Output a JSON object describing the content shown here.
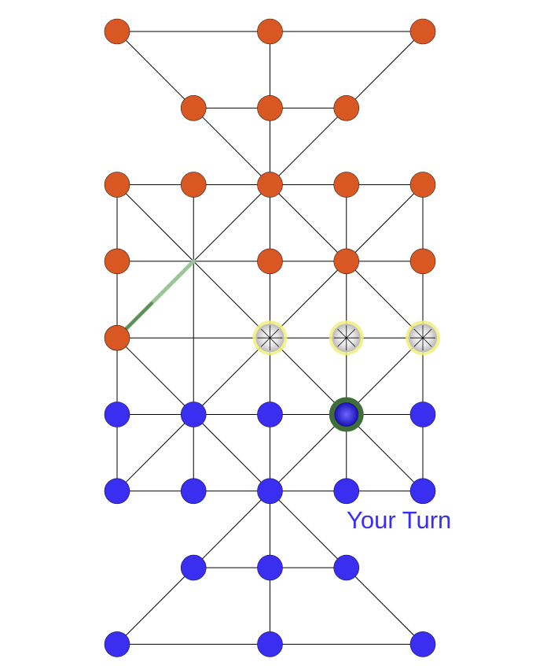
{
  "status": {
    "turn_text": "Your Turn"
  },
  "colors": {
    "background": "#ffffff",
    "line": "#000000",
    "orange_piece": "#d95723",
    "blue_piece": "#3a2ef0",
    "selected_ring": "#3f6e3a",
    "move_hint_ring": "#f0ef7a",
    "move_hint_fill": "#b9b9b9",
    "last_move_trail": "#9cc49a",
    "turn_text": "#3a2ef0"
  },
  "board": {
    "columns": [
      "c0",
      "c1",
      "c2",
      "c3",
      "c4"
    ],
    "rows": [
      "r0",
      "r1",
      "r2",
      "r3",
      "r4",
      "r5",
      "r6",
      "r7",
      "r8"
    ],
    "nodes": [
      {
        "id": "n0-0",
        "col": 0,
        "row": 0,
        "piece": "orange"
      },
      {
        "id": "n2-0",
        "col": 2,
        "row": 0,
        "piece": "orange"
      },
      {
        "id": "n4-0",
        "col": 4,
        "row": 0,
        "piece": "orange"
      },
      {
        "id": "n1-1",
        "col": 1,
        "row": 1,
        "piece": "orange"
      },
      {
        "id": "n2-1",
        "col": 2,
        "row": 1,
        "piece": "orange"
      },
      {
        "id": "n3-1",
        "col": 3,
        "row": 1,
        "piece": "orange"
      },
      {
        "id": "n0-2",
        "col": 0,
        "row": 2,
        "piece": "orange"
      },
      {
        "id": "n1-2",
        "col": 1,
        "row": 2,
        "piece": "orange"
      },
      {
        "id": "n2-2",
        "col": 2,
        "row": 2,
        "piece": "orange"
      },
      {
        "id": "n3-2",
        "col": 3,
        "row": 2,
        "piece": "orange"
      },
      {
        "id": "n4-2",
        "col": 4,
        "row": 2,
        "piece": "orange"
      },
      {
        "id": "n0-3",
        "col": 0,
        "row": 3,
        "piece": "orange"
      },
      {
        "id": "n1-3",
        "col": 1,
        "row": 3,
        "piece": "empty"
      },
      {
        "id": "n2-3",
        "col": 2,
        "row": 3,
        "piece": "orange"
      },
      {
        "id": "n3-3",
        "col": 3,
        "row": 3,
        "piece": "orange"
      },
      {
        "id": "n4-3",
        "col": 4,
        "row": 3,
        "piece": "orange"
      },
      {
        "id": "n0-4",
        "col": 0,
        "row": 4,
        "piece": "orange"
      },
      {
        "id": "n1-4",
        "col": 1,
        "row": 4,
        "piece": "empty"
      },
      {
        "id": "n2-4",
        "col": 2,
        "row": 4,
        "piece": "hint"
      },
      {
        "id": "n3-4",
        "col": 3,
        "row": 4,
        "piece": "hint"
      },
      {
        "id": "n4-4",
        "col": 4,
        "row": 4,
        "piece": "hint"
      },
      {
        "id": "n0-5",
        "col": 0,
        "row": 5,
        "piece": "blue"
      },
      {
        "id": "n1-5",
        "col": 1,
        "row": 5,
        "piece": "blue"
      },
      {
        "id": "n2-5",
        "col": 2,
        "row": 5,
        "piece": "blue"
      },
      {
        "id": "n3-5",
        "col": 3,
        "row": 5,
        "piece": "blue-selected"
      },
      {
        "id": "n4-5",
        "col": 4,
        "row": 5,
        "piece": "blue"
      },
      {
        "id": "n0-6",
        "col": 0,
        "row": 6,
        "piece": "blue"
      },
      {
        "id": "n1-6",
        "col": 1,
        "row": 6,
        "piece": "blue"
      },
      {
        "id": "n2-6",
        "col": 2,
        "row": 6,
        "piece": "blue"
      },
      {
        "id": "n3-6",
        "col": 3,
        "row": 6,
        "piece": "blue"
      },
      {
        "id": "n4-6",
        "col": 4,
        "row": 6,
        "piece": "blue"
      },
      {
        "id": "n1-7",
        "col": 1,
        "row": 7,
        "piece": "blue"
      },
      {
        "id": "n2-7",
        "col": 2,
        "row": 7,
        "piece": "blue"
      },
      {
        "id": "n3-7",
        "col": 3,
        "row": 7,
        "piece": "blue"
      },
      {
        "id": "n0-8",
        "col": 0,
        "row": 8,
        "piece": "blue"
      },
      {
        "id": "n2-8",
        "col": 2,
        "row": 8,
        "piece": "blue"
      },
      {
        "id": "n4-8",
        "col": 4,
        "row": 8,
        "piece": "blue"
      }
    ],
    "edges": [
      [
        "n0-0",
        "n2-0"
      ],
      [
        "n2-0",
        "n4-0"
      ],
      [
        "n0-0",
        "n1-1"
      ],
      [
        "n4-0",
        "n3-1"
      ],
      [
        "n2-0",
        "n2-1"
      ],
      [
        "n1-1",
        "n2-1"
      ],
      [
        "n2-1",
        "n3-1"
      ],
      [
        "n2-1",
        "n2-2"
      ],
      [
        "n1-1",
        "n2-2"
      ],
      [
        "n3-1",
        "n2-2"
      ],
      [
        "n0-2",
        "n1-2"
      ],
      [
        "n1-2",
        "n2-2"
      ],
      [
        "n2-2",
        "n3-2"
      ],
      [
        "n3-2",
        "n4-2"
      ],
      [
        "n0-3",
        "n1-3"
      ],
      [
        "n1-3",
        "n2-3"
      ],
      [
        "n2-3",
        "n3-3"
      ],
      [
        "n3-3",
        "n4-3"
      ],
      [
        "n0-4",
        "n1-4"
      ],
      [
        "n1-4",
        "n2-4"
      ],
      [
        "n2-4",
        "n3-4"
      ],
      [
        "n3-4",
        "n4-4"
      ],
      [
        "n0-5",
        "n1-5"
      ],
      [
        "n1-5",
        "n2-5"
      ],
      [
        "n2-5",
        "n3-5"
      ],
      [
        "n3-5",
        "n4-5"
      ],
      [
        "n0-6",
        "n1-6"
      ],
      [
        "n1-6",
        "n2-6"
      ],
      [
        "n2-6",
        "n3-6"
      ],
      [
        "n3-6",
        "n4-6"
      ],
      [
        "n0-2",
        "n0-3"
      ],
      [
        "n0-3",
        "n0-4"
      ],
      [
        "n0-4",
        "n0-5"
      ],
      [
        "n0-5",
        "n0-6"
      ],
      [
        "n1-2",
        "n1-3"
      ],
      [
        "n1-3",
        "n1-4"
      ],
      [
        "n1-4",
        "n1-5"
      ],
      [
        "n1-5",
        "n1-6"
      ],
      [
        "n2-2",
        "n2-3"
      ],
      [
        "n2-3",
        "n2-4"
      ],
      [
        "n2-4",
        "n2-5"
      ],
      [
        "n2-5",
        "n2-6"
      ],
      [
        "n3-2",
        "n3-3"
      ],
      [
        "n3-3",
        "n3-4"
      ],
      [
        "n3-4",
        "n3-5"
      ],
      [
        "n3-5",
        "n3-6"
      ],
      [
        "n4-2",
        "n4-3"
      ],
      [
        "n4-3",
        "n4-4"
      ],
      [
        "n4-4",
        "n4-5"
      ],
      [
        "n4-5",
        "n4-6"
      ],
      [
        "n0-2",
        "n1-3"
      ],
      [
        "n1-3",
        "n2-4"
      ],
      [
        "n2-4",
        "n3-5"
      ],
      [
        "n3-5",
        "n4-6"
      ],
      [
        "n2-2",
        "n3-3"
      ],
      [
        "n3-3",
        "n4-4"
      ],
      [
        "n0-4",
        "n1-5"
      ],
      [
        "n1-5",
        "n2-6"
      ],
      [
        "n4-2",
        "n3-3"
      ],
      [
        "n3-3",
        "n2-4"
      ],
      [
        "n2-4",
        "n1-5"
      ],
      [
        "n1-5",
        "n0-6"
      ],
      [
        "n2-2",
        "n1-3"
      ],
      [
        "n1-3",
        "n0-4"
      ],
      [
        "n4-4",
        "n3-5"
      ],
      [
        "n3-5",
        "n2-6"
      ],
      [
        "n2-6",
        "n2-7"
      ],
      [
        "n2-7",
        "n2-8"
      ],
      [
        "n1-7",
        "n2-7"
      ],
      [
        "n2-7",
        "n3-7"
      ],
      [
        "n2-6",
        "n1-7"
      ],
      [
        "n2-6",
        "n3-7"
      ],
      [
        "n1-7",
        "n0-8"
      ],
      [
        "n3-7",
        "n4-8"
      ],
      [
        "n0-8",
        "n2-8"
      ],
      [
        "n2-8",
        "n4-8"
      ]
    ],
    "last_move": {
      "from": "n1-3",
      "to": "n0-4"
    }
  }
}
